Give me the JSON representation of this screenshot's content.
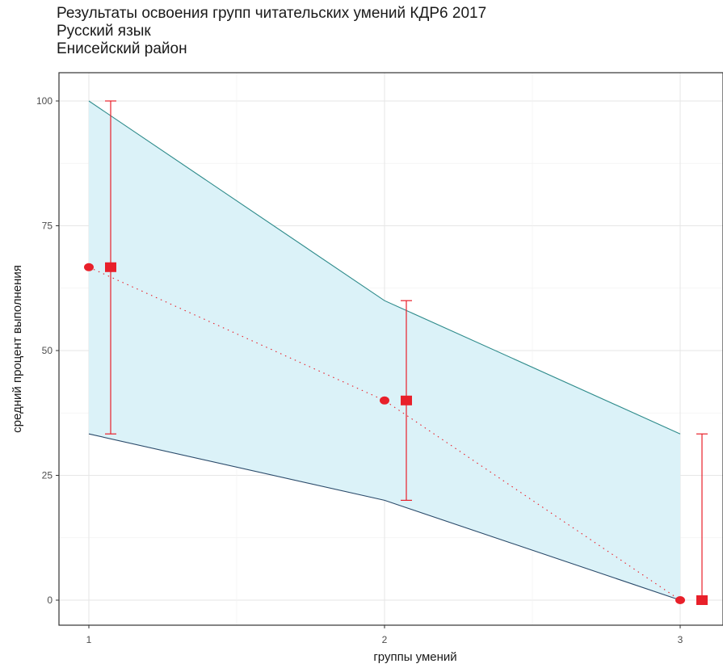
{
  "chart_data": {
    "type": "line",
    "title": "Результаты освоения групп читательских умений КДР6 2017",
    "subtitle_lines": [
      "Русский язык",
      "Енисейский район"
    ],
    "xlabel": "группы умений",
    "ylabel": "средний процент выполнения",
    "x": [
      1,
      2,
      3
    ],
    "x_ticks": [
      "1",
      "2",
      "3"
    ],
    "y_ticks": [
      "0",
      "25",
      "50",
      "75",
      "100"
    ],
    "ylim": [
      0,
      100
    ],
    "grid": true,
    "band": {
      "upper": [
        100,
        60,
        33.3
      ],
      "lower": [
        33.3,
        20,
        0
      ],
      "fill": "#dbf2f8",
      "edge": "#2e8b8b"
    },
    "series": [
      {
        "values": [
          66.7,
          40,
          0
        ],
        "marker": "circle",
        "line": "dotted",
        "color": "#e8202a"
      },
      {
        "values": [
          66.7,
          40,
          0
        ],
        "marker": "square",
        "color": "#e8202a",
        "error_low": [
          33.3,
          20,
          0
        ],
        "error_high": [
          100,
          60,
          33.3
        ]
      }
    ]
  }
}
